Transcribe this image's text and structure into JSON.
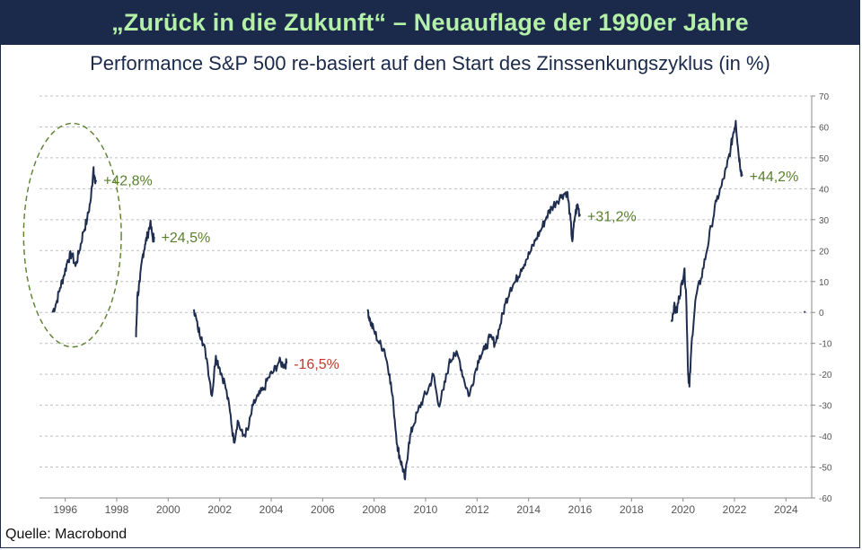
{
  "header": {
    "title": "„Zurück in die Zukunft“ – Neuauflage der 1990er Jahre"
  },
  "subtitle": "Performance S&P 500 re-basiert auf den Start des Zinssenkungszyklus (in %)",
  "source": "Quelle: Macrobond",
  "colors": {
    "header_bg": "#1b2a4a",
    "header_text": "#b5f0a8",
    "line": "#1f2d4f",
    "positive": "#5a7f2c",
    "negative": "#c0392b",
    "ellipse": "#5a7f2c"
  },
  "chart_data": {
    "type": "line",
    "xlabel": "",
    "ylabel": "",
    "xlim": [
      1995.0,
      2025.0
    ],
    "ylim": [
      -60,
      70
    ],
    "x_ticks": [
      "1996",
      "1998",
      "2000",
      "2002",
      "2004",
      "2006",
      "2008",
      "2010",
      "2012",
      "2014",
      "2016",
      "2018",
      "2020",
      "2022",
      "2024"
    ],
    "x_tick_values": [
      1996,
      1998,
      2000,
      2002,
      2004,
      2006,
      2008,
      2010,
      2012,
      2014,
      2016,
      2018,
      2020,
      2022,
      2024
    ],
    "y_ticks": [
      70,
      60,
      50,
      40,
      30,
      20,
      10,
      0,
      -10,
      -20,
      -30,
      -40,
      -50,
      -60
    ],
    "grid": "horizontal-dashed",
    "y_axis_position": "right",
    "series": [
      {
        "x": [
          1995.5,
          1995.65,
          1995.8,
          1995.95,
          1996.1,
          1996.25,
          1996.4,
          1996.55,
          1996.7,
          1996.85,
          1997.0,
          1997.1,
          1997.15,
          1997.2
        ],
        "y": [
          0,
          3,
          8,
          12,
          17,
          19,
          15,
          20,
          26,
          30,
          37,
          47,
          42,
          42.8
        ]
      },
      {
        "x": [
          1998.75,
          1998.8,
          1998.9,
          1999.0,
          1999.1,
          1999.2,
          1999.3,
          1999.4,
          1999.45
        ],
        "y": [
          -8,
          5,
          10,
          18,
          22,
          25,
          29,
          24,
          24.5
        ]
      },
      {
        "x": [
          2001.0,
          2001.15,
          2001.3,
          2001.5,
          2001.7,
          2001.85,
          2002.0,
          2002.2,
          2002.4,
          2002.55,
          2002.7,
          2002.9,
          2003.1,
          2003.3,
          2003.5,
          2003.7,
          2003.9,
          2004.1,
          2004.3,
          2004.5,
          2004.6
        ],
        "y": [
          1,
          -5,
          -8,
          -15,
          -27,
          -14,
          -18,
          -23,
          -32,
          -42,
          -35,
          -40,
          -38,
          -30,
          -27,
          -25,
          -21,
          -19,
          -16,
          -17,
          -16.5
        ]
      },
      {
        "x": [
          2007.75,
          2007.85,
          2008.0,
          2008.2,
          2008.4,
          2008.6,
          2008.75,
          2008.9,
          2009.0,
          2009.1,
          2009.2,
          2009.35,
          2009.5,
          2009.7,
          2009.9,
          2010.1,
          2010.3,
          2010.5,
          2010.7,
          2010.9,
          2011.1,
          2011.3,
          2011.5,
          2011.7,
          2011.9,
          2012.1,
          2012.3,
          2012.5,
          2012.7,
          2012.9,
          2013.1,
          2013.3,
          2013.5,
          2013.7,
          2013.9,
          2014.1,
          2014.3,
          2014.5,
          2014.7,
          2014.9,
          2015.1,
          2015.3,
          2015.5,
          2015.6,
          2015.7,
          2015.8,
          2015.9,
          2016.0
        ],
        "y": [
          1,
          -3,
          -6,
          -10,
          -12,
          -20,
          -30,
          -43,
          -47,
          -50,
          -54,
          -42,
          -37,
          -32,
          -28,
          -25,
          -20,
          -30,
          -25,
          -17,
          -13,
          -15,
          -22,
          -27,
          -20,
          -14,
          -12,
          -8,
          -10,
          -4,
          3,
          8,
          10,
          14,
          17,
          20,
          24,
          27,
          31,
          34,
          36,
          38,
          39,
          32,
          23,
          31,
          35,
          31.2
        ]
      },
      {
        "x": [
          2019.55,
          2019.65,
          2019.75,
          2019.85,
          2019.95,
          2020.05,
          2020.12,
          2020.2,
          2020.25,
          2020.35,
          2020.5,
          2020.7,
          2020.9,
          2021.1,
          2021.3,
          2021.5,
          2021.7,
          2021.85,
          2021.95,
          2022.05,
          2022.15,
          2022.25,
          2022.3
        ],
        "y": [
          -3,
          2,
          0,
          5,
          9,
          14,
          6,
          -20,
          -24,
          -8,
          5,
          11,
          19,
          28,
          36,
          41,
          47,
          53,
          58,
          62,
          52,
          46,
          44.2
        ]
      },
      {
        "x": [
          2024.7,
          2024.75
        ],
        "y": [
          0.3,
          0
        ]
      }
    ],
    "annotations": [
      {
        "text": "+42,8%",
        "x": 1997.2,
        "y": 42.8,
        "color": "positive"
      },
      {
        "text": "+24,5%",
        "x": 1999.45,
        "y": 24.5,
        "color": "positive"
      },
      {
        "text": "-16,5%",
        "x": 2004.6,
        "y": -16.5,
        "color": "negative"
      },
      {
        "text": "+31,2%",
        "x": 2016.0,
        "y": 31.2,
        "color": "positive"
      },
      {
        "text": "+44,2%",
        "x": 2022.3,
        "y": 44.2,
        "color": "positive"
      }
    ]
  }
}
